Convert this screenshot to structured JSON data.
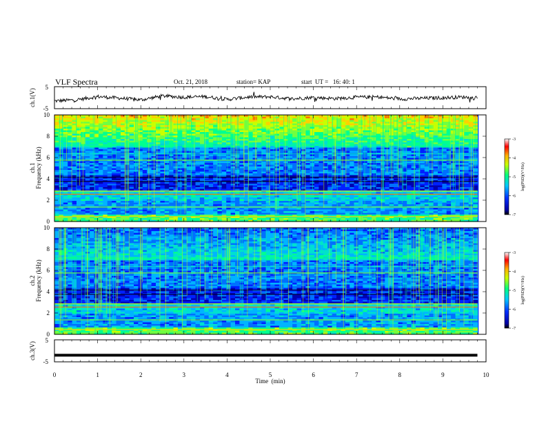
{
  "header": {
    "title": "VLF Spectra",
    "date": "Oct. 21, 2018",
    "station": "station= KAP",
    "start": "start  UT =   16: 40: 1"
  },
  "chart_data": [
    {
      "type": "line",
      "panel": "ch1-waveform",
      "ylabel": "ch.1(V)",
      "ylim": [
        -5,
        5
      ],
      "y_ticks": [
        "5",
        "-5"
      ],
      "x": [
        0,
        0.5,
        1,
        1.5,
        2,
        2.5,
        3,
        3.5,
        4,
        4.5,
        5,
        5.5,
        6,
        6.5,
        7,
        7.5,
        8,
        8.5,
        9,
        9.5,
        9.8
      ],
      "values": [
        -1.5,
        -1.0,
        0.5,
        -0.2,
        -1.0,
        0.8,
        0.2,
        0.5,
        -0.8,
        0.3,
        0.4,
        -0.5,
        0.1,
        -0.4,
        0.2,
        0.3,
        -0.6,
        -0.3,
        0.0,
        0.3,
        -0.4
      ]
    },
    {
      "type": "heatmap",
      "panel": "ch1-spectrogram",
      "ylabel_top": "ch.1",
      "ylabel": "Frequency (kHz)",
      "ylim": [
        0,
        10
      ],
      "y_ticks": [
        "0",
        "2",
        "4",
        "6",
        "8",
        "10"
      ],
      "colorbar": {
        "label": "log(PSD)(V²/Hz)",
        "range": [
          -7,
          -3
        ],
        "ticks": [
          "-3",
          "-4",
          "-5",
          "-6",
          "-7"
        ]
      }
    },
    {
      "type": "heatmap",
      "panel": "ch2-spectrogram",
      "ylabel_top": "ch.2",
      "ylabel": "Frequency (kHz)",
      "ylim": [
        0,
        10
      ],
      "y_ticks": [
        "0",
        "2",
        "4",
        "6",
        "8",
        "10"
      ],
      "colorbar": {
        "label": "log(PSD)(V²/Hz)",
        "range": [
          -7,
          -3
        ],
        "ticks": [
          "-3",
          "-4",
          "-5",
          "-6",
          "-7"
        ]
      }
    },
    {
      "type": "line",
      "panel": "ch3-waveform",
      "ylabel": "ch.3(V)",
      "ylim": [
        -5,
        5
      ],
      "y_ticks": [
        "5",
        "-5"
      ],
      "x": [
        0,
        9.8
      ],
      "values": [
        -2,
        -2
      ]
    }
  ],
  "xaxis": {
    "label": "Time  (min)",
    "ticks": [
      "0",
      "1",
      "2",
      "3",
      "4",
      "5",
      "6",
      "7",
      "8",
      "9",
      "10"
    ],
    "range": [
      0,
      10
    ]
  }
}
